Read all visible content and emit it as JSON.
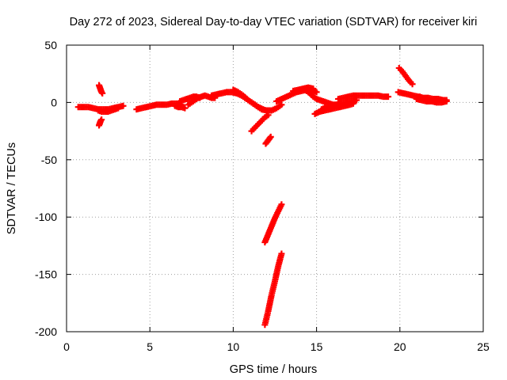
{
  "chart_data": {
    "type": "scatter",
    "title": "Day 272 of 2023, Sidereal Day-to-day VTEC variation (SDTVAR) for receiver kiri",
    "xlabel": "GPS time / hours",
    "ylabel": "SDTVAR / TECUs",
    "xlim": [
      0,
      25
    ],
    "ylim": [
      -200,
      50
    ],
    "xticks": [
      "0",
      "5",
      "10",
      "15",
      "20",
      "25"
    ],
    "yticks": [
      "-200",
      "-150",
      "-100",
      "-50",
      "0",
      "50"
    ],
    "grid": true,
    "marker_color": "#ff0000",
    "segments": [
      [
        [
          0.7,
          -4
        ],
        [
          1.0,
          -4
        ],
        [
          1.3,
          -4
        ],
        [
          1.6,
          -5
        ],
        [
          1.9,
          -6
        ],
        [
          2.2,
          -6
        ],
        [
          2.5,
          -6
        ],
        [
          2.8,
          -5
        ],
        [
          3.1,
          -4
        ],
        [
          3.4,
          -3
        ]
      ],
      [
        [
          1.9,
          -7
        ],
        [
          2.1,
          -8
        ],
        [
          2.3,
          -8
        ],
        [
          2.5,
          -8
        ],
        [
          2.7,
          -7
        ],
        [
          2.9,
          -6
        ],
        [
          3.1,
          -5
        ]
      ],
      [
        [
          1.95,
          15
        ],
        [
          2.0,
          13
        ],
        [
          2.05,
          11
        ],
        [
          2.1,
          9
        ],
        [
          2.15,
          8
        ]
      ],
      [
        [
          1.95,
          -20
        ],
        [
          2.0,
          -18
        ],
        [
          2.05,
          -16
        ],
        [
          2.1,
          -15
        ]
      ],
      [
        [
          4.2,
          -6
        ],
        [
          4.5,
          -5
        ],
        [
          4.8,
          -4
        ],
        [
          5.1,
          -3
        ],
        [
          5.4,
          -2
        ],
        [
          5.7,
          -2
        ],
        [
          6.0,
          -2
        ],
        [
          6.3,
          -1
        ],
        [
          6.6,
          -1
        ],
        [
          6.9,
          -2
        ]
      ],
      [
        [
          6.5,
          -3
        ],
        [
          6.7,
          -4
        ],
        [
          6.9,
          -4
        ],
        [
          7.1,
          -5
        ]
      ],
      [
        [
          6.8,
          1
        ],
        [
          7.0,
          2
        ],
        [
          7.2,
          3
        ],
        [
          7.4,
          4
        ],
        [
          7.6,
          5
        ],
        [
          7.8,
          5
        ],
        [
          8.0,
          4
        ]
      ],
      [
        [
          7.3,
          -2
        ],
        [
          7.5,
          0
        ],
        [
          7.7,
          2
        ],
        [
          7.9,
          4
        ],
        [
          8.1,
          5
        ],
        [
          8.3,
          6
        ],
        [
          8.5,
          5
        ],
        [
          8.7,
          4
        ],
        [
          8.9,
          4
        ]
      ],
      [
        [
          8.7,
          6
        ],
        [
          9.0,
          7
        ],
        [
          9.3,
          8
        ],
        [
          9.6,
          9
        ],
        [
          9.9,
          9
        ],
        [
          10.2,
          8
        ],
        [
          10.5,
          6
        ],
        [
          10.8,
          3
        ],
        [
          11.1,
          0
        ],
        [
          11.4,
          -3
        ],
        [
          11.7,
          -6
        ],
        [
          12.0,
          -7
        ],
        [
          12.3,
          -7
        ],
        [
          12.6,
          -5
        ],
        [
          12.9,
          -2
        ]
      ],
      [
        [
          10.0,
          11
        ],
        [
          10.3,
          9
        ],
        [
          10.6,
          6
        ],
        [
          10.9,
          2
        ],
        [
          11.2,
          -1
        ],
        [
          11.5,
          -4
        ],
        [
          11.8,
          -6
        ]
      ],
      [
        [
          11.1,
          -25
        ],
        [
          11.3,
          -22
        ],
        [
          11.5,
          -19
        ],
        [
          11.7,
          -16
        ],
        [
          11.9,
          -13
        ],
        [
          12.1,
          -11
        ]
      ],
      [
        [
          11.95,
          -36
        ],
        [
          12.05,
          -34
        ],
        [
          12.15,
          -32
        ],
        [
          12.25,
          -30
        ]
      ],
      [
        [
          11.9,
          -122
        ],
        [
          12.1,
          -115
        ],
        [
          12.3,
          -108
        ],
        [
          12.5,
          -101
        ],
        [
          12.7,
          -95
        ],
        [
          12.9,
          -89
        ]
      ],
      [
        [
          11.9,
          -194
        ],
        [
          12.1,
          -182
        ],
        [
          12.3,
          -168
        ],
        [
          12.5,
          -156
        ],
        [
          12.7,
          -143
        ],
        [
          12.9,
          -132
        ]
      ],
      [
        [
          12.6,
          1
        ],
        [
          12.9,
          3
        ],
        [
          13.2,
          5
        ],
        [
          13.5,
          7
        ],
        [
          13.8,
          9
        ],
        [
          14.1,
          10
        ],
        [
          14.4,
          11
        ],
        [
          14.7,
          11
        ],
        [
          15.0,
          9
        ]
      ],
      [
        [
          13.6,
          10
        ],
        [
          13.9,
          11
        ],
        [
          14.2,
          12
        ],
        [
          14.5,
          13
        ],
        [
          14.8,
          12
        ]
      ],
      [
        [
          14.2,
          12
        ],
        [
          14.4,
          10
        ],
        [
          14.6,
          8
        ],
        [
          14.8,
          5
        ],
        [
          15.0,
          3
        ],
        [
          15.2,
          2
        ],
        [
          15.4,
          1
        ],
        [
          15.6,
          0
        ],
        [
          15.8,
          -1
        ],
        [
          16.0,
          -2
        ],
        [
          16.2,
          -2
        ],
        [
          16.4,
          -2
        ]
      ],
      [
        [
          14.9,
          -10
        ],
        [
          15.2,
          -8
        ],
        [
          15.5,
          -7
        ],
        [
          15.8,
          -6
        ],
        [
          16.1,
          -5
        ],
        [
          16.4,
          -4
        ],
        [
          16.7,
          -3
        ],
        [
          17.0,
          -2
        ],
        [
          17.2,
          -1
        ]
      ],
      [
        [
          15.3,
          -6
        ],
        [
          15.6,
          -4
        ],
        [
          15.9,
          -3
        ],
        [
          16.2,
          -2
        ],
        [
          16.5,
          -1
        ],
        [
          16.8,
          0
        ],
        [
          17.1,
          1
        ],
        [
          17.4,
          2
        ]
      ],
      [
        [
          16.3,
          3
        ],
        [
          16.6,
          4
        ],
        [
          16.9,
          5
        ],
        [
          17.2,
          6
        ],
        [
          17.5,
          6
        ],
        [
          17.8,
          6
        ],
        [
          18.1,
          6
        ],
        [
          18.4,
          6
        ],
        [
          18.7,
          6
        ],
        [
          19.0,
          5
        ],
        [
          19.3,
          5
        ]
      ],
      [
        [
          19.95,
          30
        ],
        [
          20.15,
          27
        ],
        [
          20.35,
          23
        ],
        [
          20.55,
          19
        ],
        [
          20.75,
          16
        ]
      ],
      [
        [
          19.9,
          9
        ],
        [
          20.2,
          8
        ],
        [
          20.5,
          7
        ],
        [
          20.8,
          6
        ],
        [
          21.1,
          5
        ],
        [
          21.4,
          4
        ],
        [
          21.7,
          4
        ],
        [
          22.0,
          3
        ],
        [
          22.3,
          3
        ],
        [
          22.6,
          2
        ],
        [
          22.8,
          2
        ]
      ],
      [
        [
          21.0,
          3
        ],
        [
          21.3,
          2
        ],
        [
          21.6,
          1
        ],
        [
          21.9,
          1
        ],
        [
          22.2,
          0
        ],
        [
          22.5,
          0
        ],
        [
          22.8,
          1
        ]
      ],
      [
        [
          21.2,
          5
        ],
        [
          21.5,
          3
        ],
        [
          21.8,
          2
        ],
        [
          22.1,
          1
        ],
        [
          22.4,
          2
        ],
        [
          22.7,
          2
        ]
      ]
    ]
  }
}
